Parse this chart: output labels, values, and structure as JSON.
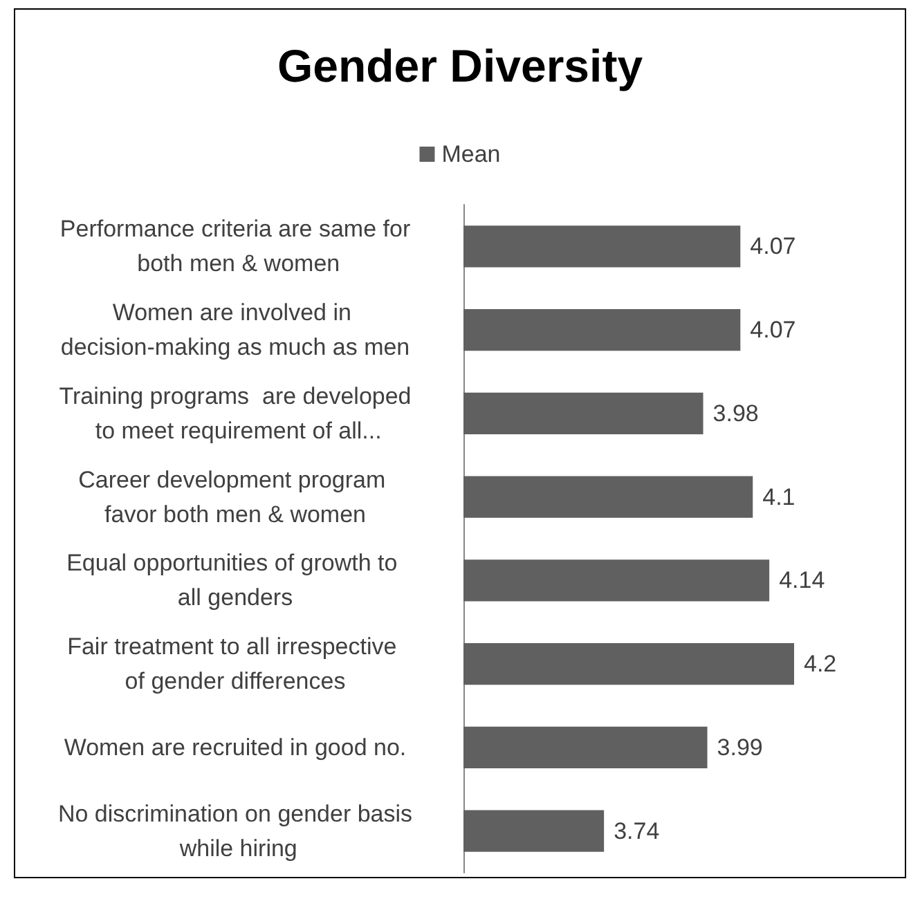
{
  "chart_data": {
    "type": "bar",
    "orientation": "horizontal",
    "title": "Gender Diversity",
    "categories": [
      "Performance criteria are same for both men & women",
      "Women are involved in decision-making as much as men",
      "Training programs  are developed to meet requirement of all...",
      "Career development program favor both men & women",
      "Equal opportunities of growth to all genders",
      "Fair treatment to all irrespective of gender differences",
      "Women are recruited in good no.",
      "No discrimination on gender basis while hiring"
    ],
    "series": [
      {
        "name": "Mean",
        "color": "#606060",
        "values": [
          4.07,
          4.07,
          3.98,
          4.1,
          4.14,
          4.2,
          3.99,
          3.74
        ]
      }
    ],
    "xlim": [
      3.4,
      4.2
    ],
    "tick_labels": "y",
    "data_labels": true,
    "legend": "top"
  }
}
